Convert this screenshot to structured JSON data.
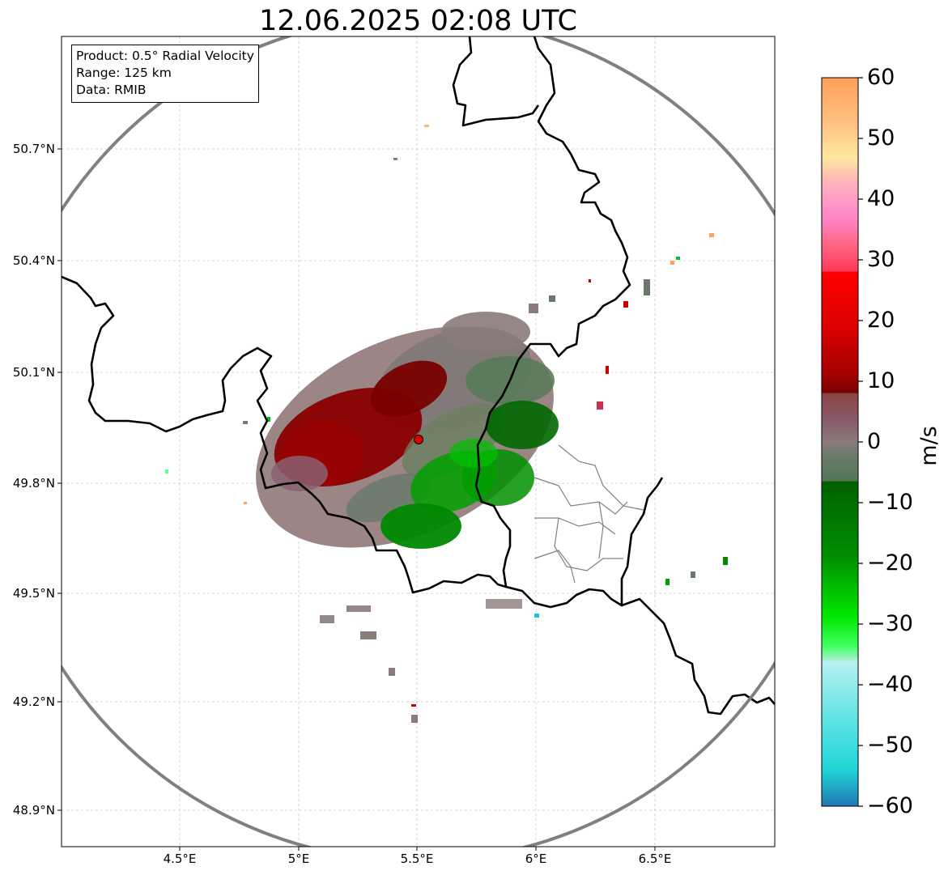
{
  "title": "12.06.2025 02:08 UTC",
  "info": {
    "product": "Product: 0.5° Radial Velocity",
    "range": "Range: 125 km",
    "data": "Data: RMIB"
  },
  "lat_labels": [
    "50.7°N",
    "50.4°N",
    "50.1°N",
    "49.8°N",
    "49.5°N",
    "49.2°N",
    "48.9°N"
  ],
  "lon_labels": [
    "4.5°E",
    "5°E",
    "5.5°E",
    "6°E",
    "6.5°E"
  ],
  "colorbar": {
    "unit": "m/s",
    "ticks": [
      "60",
      "50",
      "40",
      "30",
      "20",
      "10",
      "0",
      "−10",
      "−20",
      "−30",
      "−40",
      "−50",
      "−60"
    ],
    "range": [
      -60,
      60
    ]
  },
  "radar_site": {
    "lon": 5.505,
    "lat": 49.914
  },
  "colors": {
    "range_ring": "#808080",
    "border": "#000000",
    "admin_border": "#808080",
    "radar_marker": "#dd0000",
    "approaching_max": "#1f77b4",
    "receding_max": "#ff9f5a"
  }
}
